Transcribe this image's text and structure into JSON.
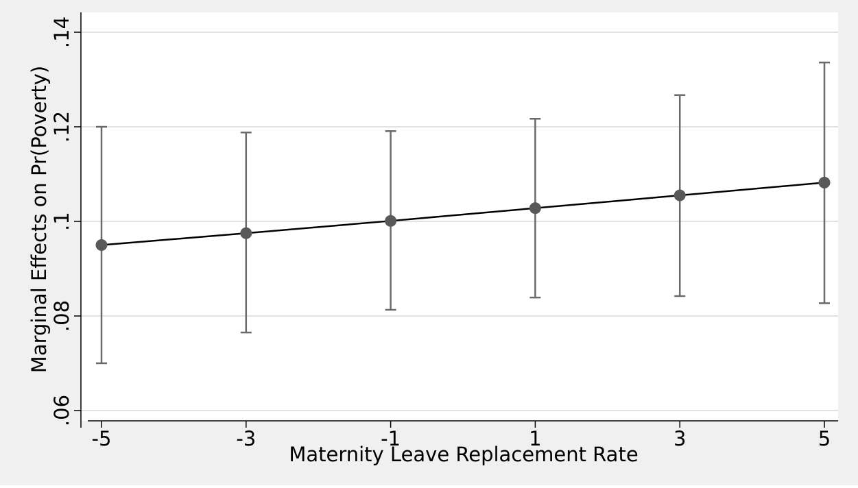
{
  "colors": {
    "outer_background": "#f0f0f0",
    "plot_background": "#ffffff",
    "gridline": "#e2e2e2",
    "marker": "#595959",
    "error_bar": "#6a6a6a",
    "line": "#000000"
  },
  "chart_data": {
    "type": "line",
    "title": "",
    "xlabel": "Maternity Leave Replacement Rate",
    "ylabel": "Marginal Effects on Pr(Poverty)",
    "x": [
      -5,
      -3,
      -1,
      1,
      3,
      5
    ],
    "xticks": [
      "-5",
      "-3",
      "-1",
      "1",
      "3",
      "5"
    ],
    "xlim": [
      -5,
      5
    ],
    "ylim": [
      0.06,
      0.14
    ],
    "yticks": [
      0.06,
      0.08,
      0.1,
      0.12,
      0.14
    ],
    "ytick_labels": [
      ".06",
      ".08",
      ".1",
      ".12",
      ".14"
    ],
    "grid": "horizontal",
    "legend": "none",
    "series": [
      {
        "values": [
          0.095,
          0.0975,
          0.1001,
          0.1028,
          0.1055,
          0.1082
        ],
        "ci_lower": [
          0.07,
          0.0765,
          0.0813,
          0.0839,
          0.0842,
          0.0827
        ],
        "ci_upper": [
          0.12,
          0.1188,
          0.1191,
          0.1217,
          0.1267,
          0.1336
        ]
      }
    ]
  }
}
